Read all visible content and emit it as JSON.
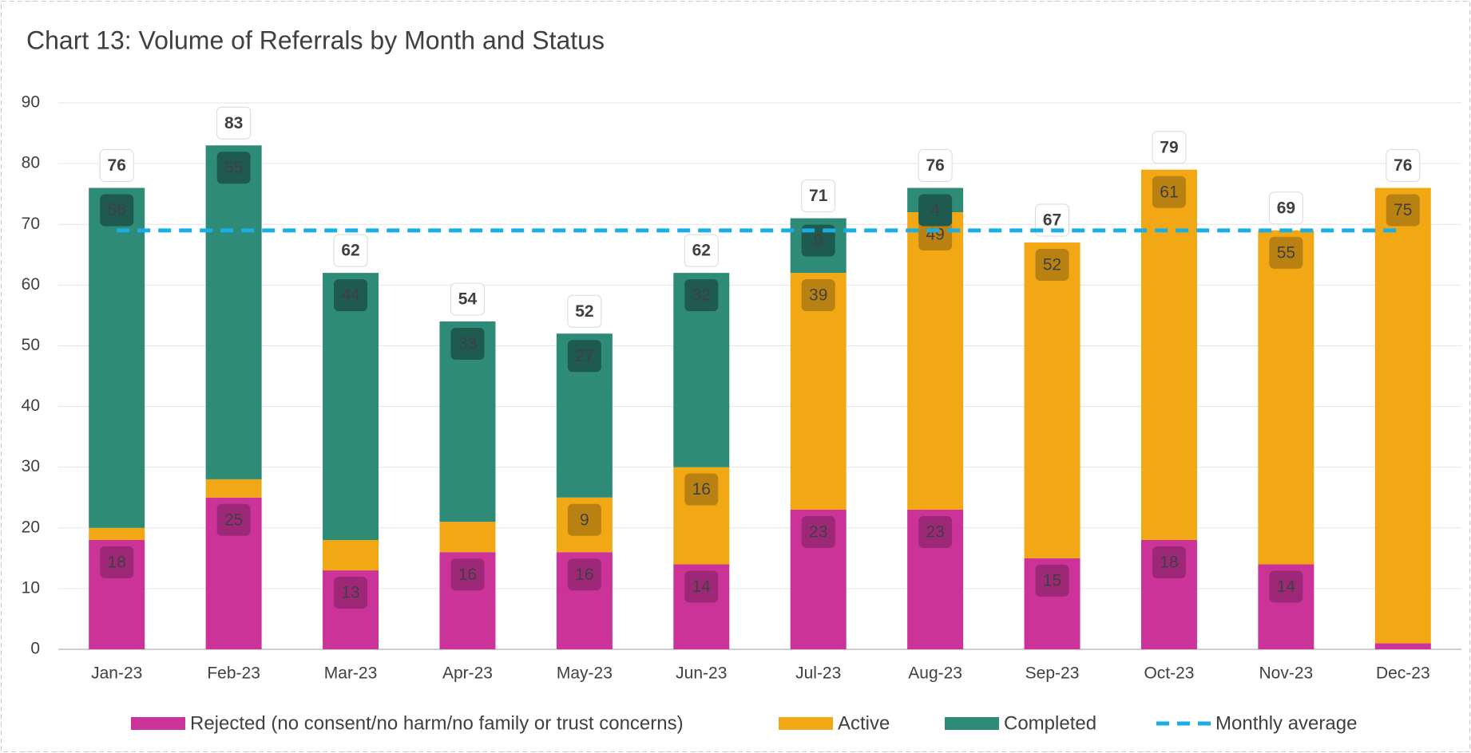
{
  "chart_data": {
    "type": "stacked_bar",
    "title": "Chart 13: Volume of Referrals by Month and Status",
    "categories": [
      "Jan-23",
      "Feb-23",
      "Mar-23",
      "Apr-23",
      "May-23",
      "Jun-23",
      "Jul-23",
      "Aug-23",
      "Sep-23",
      "Oct-23",
      "Nov-23",
      "Dec-23"
    ],
    "series": [
      {
        "name": "Rejected (no consent/no harm/no family or trust concerns)",
        "color": "#cc3399",
        "label_color": "#9e2878",
        "values": [
          18,
          25,
          13,
          16,
          16,
          14,
          23,
          23,
          15,
          18,
          14,
          1
        ],
        "value_labels": [
          "18",
          "25",
          "13",
          "16",
          "16",
          "14",
          "23",
          "23",
          "15",
          "18",
          "14",
          null
        ]
      },
      {
        "name": "Active",
        "color": "#f2a814",
        "label_color": "#b98112",
        "values": [
          2,
          3,
          5,
          5,
          9,
          16,
          39,
          49,
          52,
          61,
          55,
          75
        ],
        "value_labels": [
          null,
          null,
          null,
          null,
          "9",
          "16",
          "39",
          "49",
          "52",
          "61",
          "55",
          "75"
        ]
      },
      {
        "name": "Completed",
        "color": "#2e8b78",
        "label_color": "#1e5a4d",
        "values": [
          56,
          55,
          44,
          33,
          27,
          32,
          9,
          4,
          0,
          0,
          0,
          0
        ],
        "value_labels": [
          "56",
          "55",
          "44",
          "33",
          "27",
          "32",
          "9",
          "4",
          null,
          null,
          null,
          null
        ]
      }
    ],
    "totals": [
      76,
      83,
      62,
      54,
      52,
      62,
      71,
      76,
      67,
      79,
      69,
      76
    ],
    "average": {
      "name": "Monthly average",
      "value": 69,
      "color": "#1aaee5"
    },
    "ylim": [
      0,
      90
    ],
    "yticks": [
      0,
      10,
      20,
      30,
      40,
      50,
      60,
      70,
      80,
      90
    ],
    "grid": true,
    "legend": "bottom"
  }
}
